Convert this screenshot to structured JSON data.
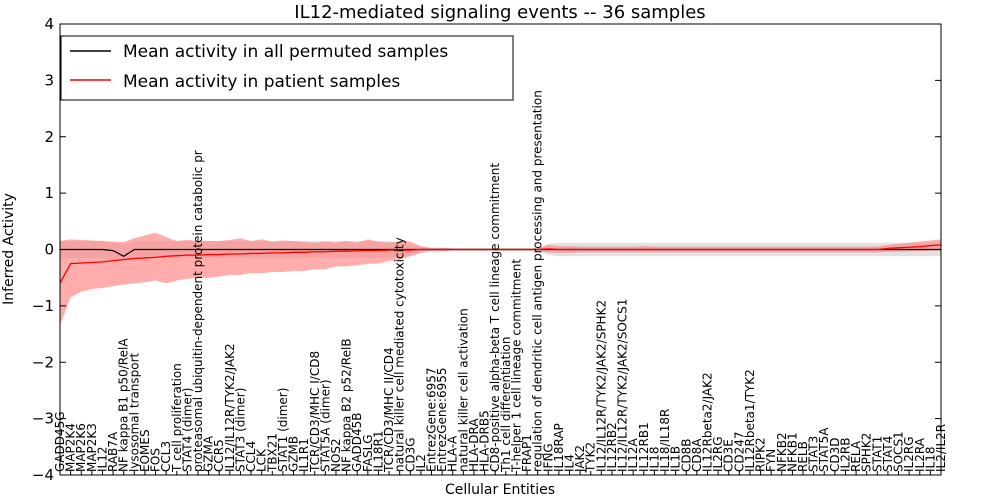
{
  "chart_data": {
    "type": "line",
    "title": "IL12-mediated signaling events -- 36 samples",
    "xlabel": "Cellular Entities",
    "ylabel": "Inferred Activity",
    "ylim": [
      -4,
      4
    ],
    "yticks": [
      "−4",
      "−3",
      "−2",
      "−1",
      "0",
      "1",
      "2",
      "3",
      "4"
    ],
    "legend": {
      "placement": "top-left",
      "entries": [
        {
          "label": "Mean activity in all permuted samples",
          "color": "#000000"
        },
        {
          "label": "Mean activity in patient samples",
          "color": "#ff0000"
        }
      ]
    },
    "categories": [
      "GADD45G",
      "MAP2K4",
      "MAP2K6",
      "MAP2K3",
      "IL12",
      "RAB7A",
      "NF kappa B1 p50/RelA",
      "lysosomal transport",
      "EOMES",
      "FOS",
      "CCL3",
      "T cell proliferation",
      "STAT4 (dimer)",
      "proteasomal ubiquitin-dependent protein catabolic pr",
      "GZMA",
      "CCR5",
      "IL12/IL12R/TYK2/JAK2",
      "STAT3 (dimer)",
      "CCL4",
      "LCK",
      "TBX21",
      "STAT1 (dimer)",
      "GZMB",
      "IL1R1",
      "TCR/CD3/MHC I/CD8",
      "STAT5A (dimer)",
      "NOS2",
      "NF kappa B2 p52/RelB",
      "GADD45B",
      "FASLG",
      "IL18R1",
      "TCR/CD3/MHC II/CD4",
      "natural killer cell mediated cytotoxicity",
      "CD3G",
      "IL2",
      "EntrezGene:6957",
      "EntrezGene:6955",
      "HLA-A",
      "natural killer cell activation",
      "HLA-DRA",
      "HLA-DRB5",
      "CD8-positive alpha-beta T cell lineage commitment",
      "Th1 cell differentiation",
      "T-helper 1 cell lineage commitment",
      "FRAP1",
      "regulation of dendritic cell antigen processing and presentation",
      "IFNG",
      "IL18RAP",
      "IL4",
      "JAK2",
      "TYK2",
      "IL12/IL12R/TYK2/JAK2/SPHK2",
      "IL12RB2",
      "IL12/IL12R/TYK2/JAK2/SOCS1",
      "IL12A",
      "IL12RB1",
      "IL18",
      "IL18/IL18R",
      "IL1B",
      "CD8B",
      "CD8A",
      "IL12Rbeta2/JAK2",
      "IL2RG",
      "CD3E",
      "CD247",
      "IL12Rbeta1/TYK2",
      "RIPK2",
      "FYN",
      "NFKB2",
      "NFKB1",
      "RELB",
      "STAT3",
      "STAT5A",
      "CD3D",
      "IL2RB",
      "RELA",
      "SPHK2",
      "STAT1",
      "STAT4",
      "SOCS1",
      "IL2RG",
      "IL2RA",
      "IL18",
      "IL2/IL2R"
    ],
    "series": [
      {
        "name": "Mean activity in all permuted samples",
        "color": "#000000",
        "values": [
          0.0,
          0.0,
          0.0,
          0.0,
          0.0,
          -0.02,
          -0.12,
          0.0,
          0.0,
          0.0,
          0.0,
          0.0,
          0.0,
          0.0,
          0.0,
          0.0,
          0.0,
          0.0,
          0.0,
          0.0,
          0.0,
          0.0,
          0.0,
          0.0,
          0.0,
          0.0,
          0.0,
          0.0,
          0.0,
          0.0,
          0.0,
          0.0,
          0.0,
          0.0,
          0.0,
          0.0,
          0.0,
          0.0,
          0.0,
          0.0,
          0.0,
          0.0,
          0.0,
          0.0,
          0.0,
          0.0,
          0.0,
          0.0,
          0.0,
          0.0,
          0.0,
          0.0,
          0.0,
          0.0,
          0.0,
          0.0,
          0.0,
          0.0,
          0.0,
          0.0,
          0.0,
          0.0,
          0.0,
          0.0,
          0.0,
          0.0,
          0.0,
          0.0,
          0.0,
          0.0,
          0.0,
          0.0,
          0.0,
          0.0,
          0.0,
          0.0,
          0.0,
          0.0,
          0.0,
          0.0,
          0.0,
          0.0,
          0.0,
          0.0
        ],
        "band_lower": [
          -0.15,
          -0.15,
          -0.15,
          -0.15,
          -0.15,
          -0.18,
          -0.2,
          -0.15,
          -0.15,
          -0.15,
          -0.15,
          -0.15,
          -0.15,
          -0.15,
          -0.15,
          -0.15,
          -0.15,
          -0.15,
          -0.15,
          -0.15,
          -0.15,
          -0.15,
          -0.15,
          -0.15,
          -0.15,
          -0.15,
          -0.15,
          -0.15,
          -0.15,
          -0.15,
          -0.15,
          -0.15,
          -0.12,
          -0.08,
          -0.04,
          -0.02,
          -0.02,
          -0.02,
          -0.02,
          -0.02,
          -0.02,
          -0.02,
          -0.02,
          -0.02,
          -0.02,
          -0.02,
          -0.1,
          -0.12,
          -0.12,
          -0.12,
          -0.12,
          -0.12,
          -0.12,
          -0.12,
          -0.12,
          -0.12,
          -0.12,
          -0.12,
          -0.12,
          -0.12,
          -0.12,
          -0.12,
          -0.12,
          -0.12,
          -0.12,
          -0.12,
          -0.12,
          -0.12,
          -0.12,
          -0.12,
          -0.12,
          -0.12,
          -0.12,
          -0.12,
          -0.12,
          -0.12,
          -0.12,
          -0.12,
          -0.12,
          -0.12,
          -0.12,
          -0.12,
          -0.12,
          -0.12
        ],
        "band_upper": [
          0.15,
          0.15,
          0.15,
          0.15,
          0.15,
          0.12,
          0.08,
          0.15,
          0.15,
          0.15,
          0.15,
          0.15,
          0.15,
          0.15,
          0.15,
          0.15,
          0.15,
          0.15,
          0.15,
          0.15,
          0.15,
          0.15,
          0.15,
          0.15,
          0.15,
          0.15,
          0.15,
          0.15,
          0.15,
          0.15,
          0.15,
          0.15,
          0.12,
          0.08,
          0.04,
          0.02,
          0.02,
          0.02,
          0.02,
          0.02,
          0.02,
          0.02,
          0.02,
          0.02,
          0.02,
          0.02,
          0.1,
          0.12,
          0.12,
          0.12,
          0.12,
          0.12,
          0.12,
          0.12,
          0.12,
          0.12,
          0.12,
          0.12,
          0.12,
          0.12,
          0.12,
          0.12,
          0.12,
          0.12,
          0.12,
          0.12,
          0.12,
          0.12,
          0.12,
          0.12,
          0.12,
          0.12,
          0.12,
          0.12,
          0.12,
          0.12,
          0.12,
          0.12,
          0.12,
          0.12,
          0.12,
          0.12,
          0.12,
          0.12
        ]
      },
      {
        "name": "Mean activity in patient samples",
        "color": "#ff0000",
        "values": [
          -0.6,
          -0.25,
          -0.24,
          -0.23,
          -0.22,
          -0.2,
          -0.18,
          -0.16,
          -0.15,
          -0.14,
          -0.12,
          -0.11,
          -0.1,
          -0.1,
          -0.09,
          -0.09,
          -0.08,
          -0.08,
          -0.07,
          -0.07,
          -0.06,
          -0.06,
          -0.05,
          -0.05,
          -0.04,
          -0.04,
          -0.03,
          -0.03,
          -0.02,
          -0.02,
          -0.02,
          -0.01,
          -0.01,
          -0.01,
          0.0,
          0.0,
          0.0,
          0.0,
          0.0,
          0.0,
          0.0,
          0.0,
          0.0,
          0.0,
          0.0,
          0.0,
          0.01,
          0.0,
          0.0,
          0.0,
          0.0,
          0.0,
          0.0,
          0.0,
          0.0,
          0.0,
          0.0,
          0.0,
          0.0,
          0.0,
          0.0,
          0.0,
          0.0,
          0.0,
          0.0,
          0.0,
          0.0,
          0.0,
          0.0,
          0.0,
          0.0,
          0.0,
          0.0,
          0.0,
          0.0,
          0.0,
          0.0,
          0.0,
          0.02,
          0.03,
          0.04,
          0.05,
          0.07,
          0.08
        ],
        "band_lower": [
          -1.35,
          -0.85,
          -0.75,
          -0.7,
          -0.68,
          -0.65,
          -0.62,
          -0.6,
          -0.58,
          -0.55,
          -0.6,
          -0.55,
          -0.52,
          -0.5,
          -0.5,
          -0.48,
          -0.45,
          -0.45,
          -0.42,
          -0.42,
          -0.4,
          -0.4,
          -0.38,
          -0.38,
          -0.35,
          -0.35,
          -0.3,
          -0.3,
          -0.28,
          -0.25,
          -0.25,
          -0.2,
          -0.18,
          -0.12,
          -0.06,
          -0.03,
          -0.03,
          -0.02,
          -0.02,
          -0.02,
          -0.02,
          -0.02,
          -0.02,
          -0.02,
          -0.02,
          -0.02,
          -0.05,
          -0.06,
          -0.06,
          -0.05,
          -0.05,
          -0.05,
          -0.05,
          -0.05,
          -0.05,
          -0.05,
          -0.05,
          -0.05,
          -0.05,
          -0.05,
          -0.05,
          -0.05,
          -0.05,
          -0.05,
          -0.05,
          -0.05,
          -0.05,
          -0.05,
          -0.05,
          -0.05,
          -0.05,
          -0.05,
          -0.05,
          -0.05,
          -0.05,
          -0.05,
          -0.05,
          -0.05,
          -0.04,
          -0.04,
          -0.03,
          -0.03,
          -0.02,
          -0.02
        ],
        "band_upper": [
          0.15,
          0.18,
          0.17,
          0.16,
          0.15,
          0.14,
          0.13,
          0.2,
          0.25,
          0.3,
          0.22,
          0.15,
          0.17,
          0.15,
          0.15,
          0.15,
          0.17,
          0.2,
          0.15,
          0.18,
          0.14,
          0.16,
          0.15,
          0.13,
          0.12,
          0.14,
          0.12,
          0.15,
          0.12,
          0.18,
          0.14,
          0.12,
          0.15,
          0.14,
          0.06,
          0.03,
          0.03,
          0.02,
          0.02,
          0.02,
          0.02,
          0.02,
          0.02,
          0.02,
          0.02,
          0.02,
          0.08,
          0.06,
          0.06,
          0.05,
          0.05,
          0.05,
          0.05,
          0.05,
          0.05,
          0.06,
          0.05,
          0.05,
          0.05,
          0.05,
          0.05,
          0.05,
          0.05,
          0.05,
          0.05,
          0.05,
          0.05,
          0.05,
          0.05,
          0.05,
          0.05,
          0.05,
          0.05,
          0.05,
          0.05,
          0.05,
          0.05,
          0.05,
          0.08,
          0.1,
          0.12,
          0.14,
          0.16,
          0.18
        ]
      }
    ]
  }
}
